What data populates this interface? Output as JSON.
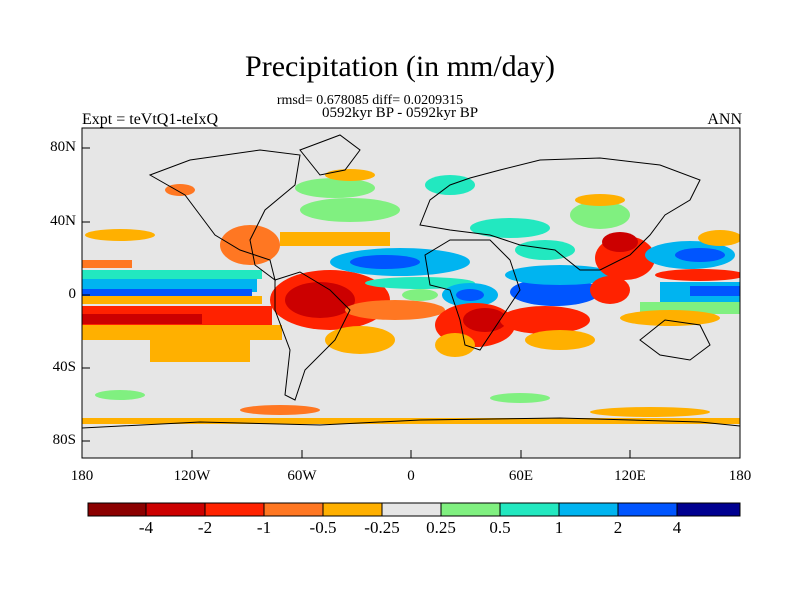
{
  "title": "Precipitation (in mm/day)",
  "stats": "rmsd= 0.678085 diff= 0.0209315",
  "period": "0592kyr BP - 0592kyr BP",
  "experiment": "Expt = teVtQ1-teIxQ",
  "season": "ANN",
  "y_axis_labels": [
    "80N",
    "40N",
    "0",
    "40S",
    "80S"
  ],
  "x_axis_labels": [
    "180",
    "120W",
    "60W",
    "0",
    "60E",
    "120E",
    "180"
  ],
  "colorbar": {
    "labels": [
      "-4",
      "-2",
      "-1",
      "-0.5",
      "-0.25",
      "0.25",
      "0.5",
      "1",
      "2",
      "4"
    ],
    "colors": [
      "#8b0000",
      "#cc0000",
      "#ff2200",
      "#ff7722",
      "#ffb000",
      "#e6e6e6",
      "#80f080",
      "#22e8c0",
      "#00b4f0",
      "#0055ff",
      "#000090"
    ]
  },
  "chart_data": {
    "type": "heatmap",
    "variable": "Precipitation difference",
    "units": "mm/day",
    "x_range": [
      -180,
      180
    ],
    "y_range": [
      -90,
      90
    ],
    "levels": [
      -4,
      -2,
      -1,
      -0.5,
      -0.25,
      0.25,
      0.5,
      1,
      2,
      4
    ]
  }
}
